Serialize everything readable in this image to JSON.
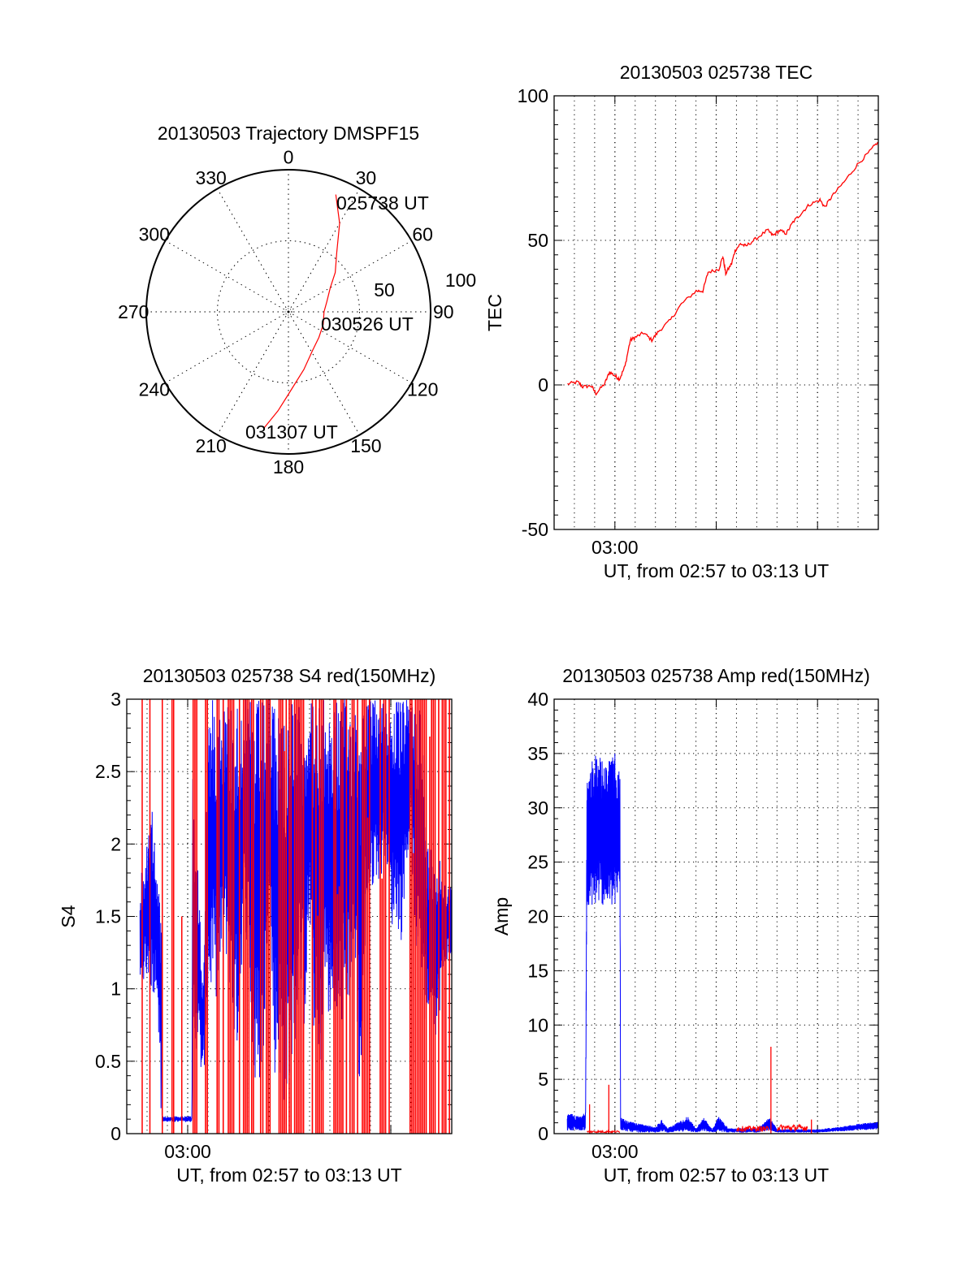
{
  "colors": {
    "red": "#ff0000",
    "blue": "#0000ff",
    "axis": "#000000"
  },
  "chart_data": [
    {
      "id": "trajectory",
      "type": "polar",
      "title": "20130503 Trajectory DMSPF15",
      "angle_labels": [
        "0",
        "30",
        "60",
        "90",
        "120",
        "150",
        "180",
        "210",
        "240",
        "270",
        "300",
        "330"
      ],
      "radius_labels": [
        "50",
        "100"
      ],
      "rlim": [
        0,
        100
      ],
      "grid": true,
      "series": [
        {
          "name": "trajectory",
          "color": "red",
          "points_az_r": [
            [
              22,
              89
            ],
            [
              30,
              72
            ],
            [
              39,
              54
            ],
            [
              50,
              43
            ],
            [
              60,
              34
            ],
            [
              75,
              28
            ],
            [
              90,
              25
            ],
            [
              110,
              26
            ],
            [
              130,
              28
            ],
            [
              148,
              32
            ],
            [
              165,
              42
            ],
            [
              180,
              58
            ],
            [
              186,
              70
            ],
            [
              192,
              84
            ]
          ]
        }
      ],
      "annotations": [
        {
          "text": "025738 UT",
          "az": 22,
          "r": 89
        },
        {
          "text": "030526 UT",
          "az": 90,
          "r": 25
        },
        {
          "text": "031307 UT",
          "az": 192,
          "r": 84
        }
      ]
    },
    {
      "id": "tec",
      "type": "line",
      "title": "20130503 025738 TEC",
      "xlabel": "UT, from 02:57 to 03:13 UT",
      "ylabel": "TEC",
      "x_unit": "minutes after 02:57 UT",
      "xlim": [
        0,
        16
      ],
      "ylim": [
        -50,
        100
      ],
      "xtick_labels": [
        {
          "x": 3,
          "label": "03:00"
        }
      ],
      "ytick_labels": [
        "-50",
        "0",
        "50",
        "100"
      ],
      "ytick_values": [
        -50,
        0,
        50,
        100
      ],
      "grid": true,
      "series": [
        {
          "name": "TEC",
          "color": "red",
          "x": [
            0.66,
            1.17,
            1.41,
            1.83,
            2.07,
            2.5,
            2.74,
            3.03,
            3.23,
            3.5,
            3.76,
            4.02,
            4.42,
            4.82,
            5.15,
            5.75,
            6.28,
            7.01,
            7.34,
            7.6,
            8.13,
            8.33,
            8.47,
            8.76,
            8.93,
            9.2,
            9.47,
            9.93,
            10.53,
            10.8,
            11.13,
            11.46,
            11.79,
            12.19,
            12.58,
            13.12,
            13.36,
            13.71,
            14.31,
            14.97,
            15.57,
            15.97
          ],
          "y": [
            0.3,
            1,
            -0.7,
            -0.3,
            -3,
            0.5,
            4.5,
            3,
            2,
            6.5,
            15.5,
            16.5,
            18,
            15.5,
            18.5,
            22.5,
            28,
            32.5,
            32.5,
            39,
            40,
            44.5,
            38.5,
            42,
            46.5,
            48.8,
            48,
            50.4,
            53.5,
            51.7,
            53.4,
            52.4,
            56.3,
            59.3,
            62.3,
            64,
            61.5,
            65.2,
            70.2,
            76.2,
            80.7,
            84
          ]
        }
      ]
    },
    {
      "id": "s4",
      "type": "line",
      "title": "20130503 025738 S4 red(150MHz)",
      "xlabel": "UT, from 02:57 to 03:13 UT",
      "ylabel": "S4",
      "x_unit": "minutes after 02:57 UT",
      "xlim": [
        0,
        16
      ],
      "ylim": [
        0,
        3
      ],
      "xtick_labels": [
        {
          "x": 3,
          "label": "03:00"
        }
      ],
      "ytick_labels": [
        "0",
        "0.5",
        "1",
        "1.5",
        "2",
        "2.5",
        "3"
      ],
      "ytick_values": [
        0,
        0.5,
        1,
        1.5,
        2,
        2.5,
        3
      ],
      "grid": true,
      "blue_envelope": {
        "color": "blue",
        "t_lo_hi": [
          [
            0.65,
            1.0,
            1.75
          ],
          [
            1.0,
            1.1,
            2.0
          ],
          [
            1.25,
            0.95,
            2.27
          ],
          [
            1.5,
            1.0,
            1.8
          ],
          [
            1.7,
            0.08,
            1.5
          ],
          [
            1.75,
            0.08,
            0.12
          ],
          [
            3.2,
            0.08,
            0.12
          ],
          [
            3.25,
            0.5,
            2.5
          ],
          [
            3.5,
            0.6,
            1.9
          ],
          [
            3.75,
            0.3,
            1.0
          ],
          [
            4.0,
            0.9,
            3.0
          ],
          [
            4.25,
            1.0,
            3.0
          ],
          [
            4.5,
            0.9,
            3.0
          ],
          [
            4.75,
            1.2,
            3.0
          ],
          [
            5.0,
            1.2,
            3.0
          ],
          [
            5.25,
            0.5,
            3.0
          ],
          [
            5.5,
            0.6,
            3.0
          ],
          [
            5.75,
            1.5,
            3.0
          ],
          [
            6.0,
            1.2,
            3.0
          ],
          [
            6.25,
            0.2,
            3.0
          ],
          [
            6.5,
            0.3,
            3.0
          ],
          [
            6.75,
            0.5,
            3.0
          ],
          [
            7.0,
            1.8,
            3.0
          ],
          [
            7.25,
            0.4,
            3.0
          ],
          [
            7.5,
            0.4,
            3.0
          ],
          [
            7.75,
            0,
            3.0
          ],
          [
            8.0,
            0.4,
            3.0
          ],
          [
            8.25,
            0.4,
            3.0
          ],
          [
            8.5,
            1.0,
            3.0
          ],
          [
            8.75,
            0.7,
            3.0
          ],
          [
            9.0,
            1.5,
            3.0
          ],
          [
            9.25,
            0.5,
            3.0
          ],
          [
            9.5,
            0,
            3.0
          ],
          [
            9.75,
            1.0,
            3.0
          ],
          [
            10.0,
            0.7,
            3.0
          ],
          [
            10.25,
            0.6,
            3.0
          ],
          [
            10.5,
            0.6,
            3.0
          ],
          [
            10.75,
            0.9,
            3.0
          ],
          [
            11.0,
            0.9,
            3.0
          ],
          [
            11.25,
            1.2,
            3.0
          ],
          [
            11.5,
            0,
            3.0
          ],
          [
            11.75,
            1.5,
            3.0
          ],
          [
            12.0,
            1.6,
            3.0
          ],
          [
            12.25,
            1.8,
            3.0
          ],
          [
            12.5,
            1.7,
            3.0
          ],
          [
            12.75,
            2.0,
            3.0
          ],
          [
            13.0,
            1.4,
            3.0
          ],
          [
            13.25,
            1.5,
            3.0
          ],
          [
            13.5,
            1.3,
            3.0
          ],
          [
            13.75,
            1.8,
            3.0
          ],
          [
            14.0,
            2.0,
            3.0
          ],
          [
            14.25,
            1.2,
            3.0
          ],
          [
            14.5,
            1.1,
            3.0
          ],
          [
            14.75,
            0.7,
            2.0
          ],
          [
            15.0,
            1.0,
            2.0
          ],
          [
            15.25,
            0.6,
            2.0
          ],
          [
            15.5,
            1.0,
            1.9
          ],
          [
            15.75,
            1.2,
            1.7
          ],
          [
            16.0,
            1.2,
            1.7
          ]
        ]
      },
      "red_spikes": {
        "color": "red",
        "t_top": [
          [
            0.76,
            3
          ],
          [
            1.14,
            3
          ],
          [
            1.75,
            3
          ],
          [
            2.23,
            3
          ],
          [
            2.31,
            3
          ],
          [
            2.71,
            1.5
          ]
        ]
      },
      "red_bands": {
        "color": "red",
        "t0_t1_top": [
          [
            3.27,
            3.62,
            3
          ],
          [
            3.88,
            4.05,
            3
          ],
          [
            4.15,
            4.2,
            3
          ],
          [
            4.45,
            4.55,
            3
          ],
          [
            4.75,
            4.8,
            3
          ],
          [
            5.0,
            5.3,
            3
          ],
          [
            5.55,
            5.62,
            3
          ],
          [
            5.75,
            6.05,
            3
          ],
          [
            6.15,
            6.6,
            3
          ],
          [
            6.7,
            7.1,
            3
          ],
          [
            7.5,
            7.95,
            3
          ],
          [
            8.0,
            8.9,
            3
          ],
          [
            9.05,
            9.8,
            3
          ],
          [
            10.2,
            11.0,
            3
          ],
          [
            11.1,
            11.5,
            3
          ],
          [
            11.6,
            12.95,
            3
          ],
          [
            13.95,
            16.0,
            3
          ]
        ]
      }
    },
    {
      "id": "amp",
      "type": "line",
      "title": "20130503 025738 Amp red(150MHz)",
      "xlabel": "UT, from 02:57 to 03:13 UT",
      "ylabel": "Amp",
      "x_unit": "minutes after 02:57 UT",
      "xlim": [
        0,
        16
      ],
      "ylim": [
        0,
        40
      ],
      "xtick_labels": [
        {
          "x": 3,
          "label": "03:00"
        }
      ],
      "ytick_labels": [
        "0",
        "5",
        "10",
        "15",
        "20",
        "25",
        "30",
        "35",
        "40"
      ],
      "ytick_values": [
        0,
        5,
        10,
        15,
        20,
        25,
        30,
        35,
        40
      ],
      "grid": true,
      "blue_envelope": {
        "color": "blue",
        "t_lo_hi": [
          [
            0.65,
            0.2,
            1.8
          ],
          [
            1.0,
            0.3,
            1.8
          ],
          [
            1.3,
            0.3,
            1.6
          ],
          [
            1.55,
            0.3,
            2.0
          ],
          [
            1.62,
            21,
            33
          ],
          [
            2.0,
            21,
            35.5
          ],
          [
            2.5,
            21,
            34
          ],
          [
            3.0,
            20.5,
            35
          ],
          [
            3.25,
            22,
            33
          ],
          [
            3.28,
            0.3,
            1.5
          ],
          [
            3.6,
            0.2,
            1.2
          ],
          [
            4.0,
            0.1,
            1.0
          ],
          [
            5.0,
            0.1,
            0.6
          ],
          [
            5.3,
            0.2,
            1.3
          ],
          [
            5.6,
            0.1,
            0.5
          ],
          [
            6.6,
            0.2,
            1.6
          ],
          [
            7.0,
            0.1,
            0.5
          ],
          [
            7.4,
            0.2,
            1.5
          ],
          [
            7.8,
            0.1,
            0.4
          ],
          [
            8.1,
            0.2,
            1.6
          ],
          [
            8.6,
            0.1,
            0.5
          ],
          [
            10.0,
            0.1,
            0.5
          ],
          [
            10.65,
            0.3,
            1.5
          ],
          [
            11.0,
            0.1,
            0.4
          ],
          [
            13.0,
            0.1,
            0.4
          ],
          [
            14.0,
            0.2,
            0.6
          ],
          [
            15.0,
            0.3,
            0.9
          ],
          [
            16.0,
            0.4,
            1.1
          ]
        ]
      },
      "red_segments": {
        "color": "red",
        "t0_t1_value": [
          [
            1.62,
            3.25,
            0.2
          ],
          [
            9.0,
            10.6,
            0.5
          ],
          [
            11.0,
            12.5,
            0.6
          ]
        ]
      },
      "red_spikes": {
        "color": "red",
        "t_top": [
          [
            1.75,
            2.7
          ],
          [
            2.7,
            4.5
          ],
          [
            10.7,
            8.0
          ],
          [
            12.7,
            1.3
          ]
        ]
      }
    }
  ]
}
